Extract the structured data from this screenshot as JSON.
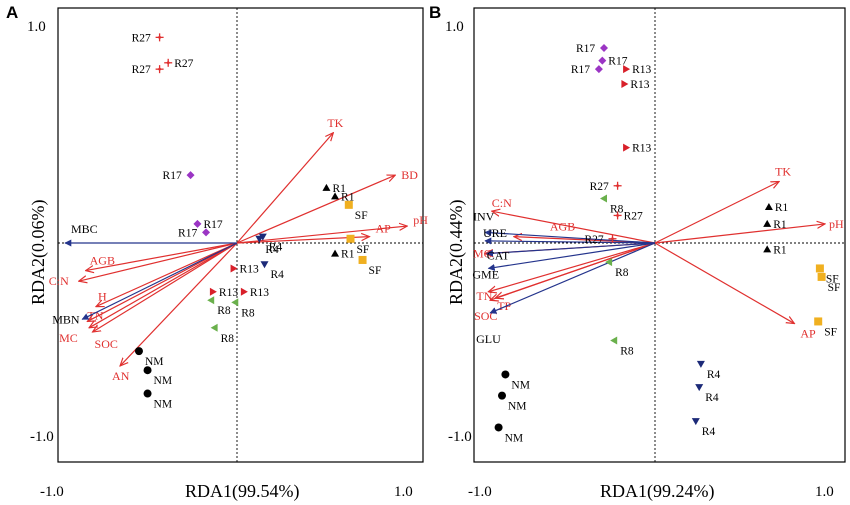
{
  "chart_data": [
    {
      "type": "scatter",
      "panel": "A",
      "xlabel": "RDA1(99.54%)",
      "ylabel": "RDA2(0.06%)",
      "xlim": [
        -1.05,
        1.0
      ],
      "ylim": [
        -1.1,
        1.05
      ],
      "x_ticks": [
        "-1.0",
        "1.0"
      ],
      "y_ticks": [
        "1.0",
        "-1.0"
      ],
      "env_vectors": [
        {
          "name": "TK",
          "x": 0.56,
          "y": 0.52,
          "color": "red"
        },
        {
          "name": "BD",
          "x": 0.92,
          "y": 0.32,
          "color": "red"
        },
        {
          "name": "pH",
          "x": 0.99,
          "y": 0.08,
          "color": "red"
        },
        {
          "name": "AP",
          "x": 0.77,
          "y": 0.03,
          "color": "red"
        },
        {
          "name": "AGB",
          "x": -0.88,
          "y": -0.13,
          "color": "red"
        },
        {
          "name": "C:N",
          "x": -0.92,
          "y": -0.18,
          "color": "red"
        },
        {
          "name": "H",
          "x": -0.82,
          "y": -0.3,
          "color": "red"
        },
        {
          "name": "TN",
          "x": -0.87,
          "y": -0.37,
          "color": "red"
        },
        {
          "name": "MC",
          "x": -0.86,
          "y": -0.4,
          "color": "red"
        },
        {
          "name": "SOC",
          "x": -0.84,
          "y": -0.42,
          "color": "red"
        },
        {
          "name": "AN",
          "x": -0.68,
          "y": -0.58,
          "color": "red"
        },
        {
          "name": "MBC",
          "x": -1.0,
          "y": 0.0,
          "color": "blue"
        },
        {
          "name": "MBN",
          "x": -0.9,
          "y": -0.36,
          "color": "blue"
        }
      ],
      "samples": [
        {
          "label": "R27",
          "group": "R27",
          "x": -0.45,
          "y": 0.97
        },
        {
          "label": "R27",
          "group": "R27",
          "x": -0.4,
          "y": 0.85
        },
        {
          "label": "R27",
          "group": "R27",
          "x": -0.45,
          "y": 0.82
        },
        {
          "label": "R17",
          "group": "R17",
          "x": -0.27,
          "y": 0.32
        },
        {
          "label": "R17",
          "group": "R17",
          "x": -0.23,
          "y": 0.09
        },
        {
          "label": "R17",
          "group": "R17",
          "x": -0.18,
          "y": 0.05
        },
        {
          "label": "R4",
          "group": "R4",
          "x": 0.15,
          "y": 0.03
        },
        {
          "label": "R4",
          "group": "R4",
          "x": 0.13,
          "y": 0.02
        },
        {
          "label": "R4",
          "group": "R4",
          "x": 0.16,
          "y": -0.1
        },
        {
          "label": "R1",
          "group": "R1",
          "x": 0.52,
          "y": 0.26
        },
        {
          "label": "R1",
          "group": "R1",
          "x": 0.57,
          "y": 0.22
        },
        {
          "label": "R1",
          "group": "R1",
          "x": 0.57,
          "y": -0.05
        },
        {
          "label": "SF",
          "group": "SF",
          "x": 0.65,
          "y": 0.18
        },
        {
          "label": "SF",
          "group": "SF",
          "x": 0.66,
          "y": 0.02
        },
        {
          "label": "SF",
          "group": "SF",
          "x": 0.73,
          "y": -0.08
        },
        {
          "label": "R13",
          "group": "R13",
          "x": -0.02,
          "y": -0.12
        },
        {
          "label": "R13",
          "group": "R13",
          "x": -0.14,
          "y": -0.23
        },
        {
          "label": "R13",
          "group": "R13",
          "x": 0.04,
          "y": -0.23
        },
        {
          "label": "R8",
          "group": "R8",
          "x": -0.15,
          "y": -0.27
        },
        {
          "label": "R8",
          "group": "R8",
          "x": -0.01,
          "y": -0.28
        },
        {
          "label": "R8",
          "group": "R8",
          "x": -0.13,
          "y": -0.4
        },
        {
          "label": "NM",
          "group": "NM",
          "x": -0.57,
          "y": -0.51
        },
        {
          "label": "NM",
          "group": "NM",
          "x": -0.52,
          "y": -0.6
        },
        {
          "label": "NM",
          "group": "NM",
          "x": -0.52,
          "y": -0.71
        }
      ]
    },
    {
      "type": "scatter",
      "panel": "B",
      "xlabel": "RDA1(99.24%)",
      "ylabel": "RDA2(0.44%)",
      "xlim": [
        -1.05,
        1.0
      ],
      "ylim": [
        -1.1,
        1.05
      ],
      "x_ticks": [
        "-1.0",
        "1.0"
      ],
      "y_ticks": [
        "1.0",
        "-1.0"
      ],
      "env_vectors": [
        {
          "name": "TK",
          "x": 0.73,
          "y": 0.29,
          "color": "red"
        },
        {
          "name": "pH",
          "x": 1.0,
          "y": 0.09,
          "color": "red"
        },
        {
          "name": "AP",
          "x": 0.82,
          "y": -0.38,
          "color": "red"
        },
        {
          "name": "C:N",
          "x": -0.96,
          "y": 0.15,
          "color": "red"
        },
        {
          "name": "AGB",
          "x": -0.83,
          "y": 0.03,
          "color": "red"
        },
        {
          "name": "MC",
          "x": -1.0,
          "y": -0.05,
          "color": "red"
        },
        {
          "name": "TN",
          "x": -0.98,
          "y": -0.23,
          "color": "red"
        },
        {
          "name": "SOC",
          "x": -0.97,
          "y": -0.27,
          "color": "red"
        },
        {
          "name": "TP",
          "x": -0.94,
          "y": -0.26,
          "color": "red"
        },
        {
          "name": "INV",
          "x": -1.0,
          "y": 0.05,
          "color": "blue"
        },
        {
          "name": "URE",
          "x": -1.0,
          "y": 0.01,
          "color": "blue"
        },
        {
          "name": "CAT",
          "x": -0.99,
          "y": -0.05,
          "color": "blue"
        },
        {
          "name": "GME",
          "x": -0.98,
          "y": -0.12,
          "color": "blue"
        },
        {
          "name": "GLU",
          "x": -0.97,
          "y": -0.33,
          "color": "blue"
        }
      ],
      "samples": [
        {
          "label": "R17",
          "group": "R17",
          "x": -0.3,
          "y": 0.92
        },
        {
          "label": "R17",
          "group": "R17",
          "x": -0.31,
          "y": 0.86
        },
        {
          "label": "R17",
          "group": "R17",
          "x": -0.33,
          "y": 0.82
        },
        {
          "label": "R13",
          "group": "R13",
          "x": -0.17,
          "y": 0.82
        },
        {
          "label": "R13",
          "group": "R13",
          "x": -0.18,
          "y": 0.75
        },
        {
          "label": "R13",
          "group": "R13",
          "x": -0.17,
          "y": 0.45
        },
        {
          "label": "R27",
          "group": "R27",
          "x": -0.22,
          "y": 0.27
        },
        {
          "label": "R27",
          "group": "R27",
          "x": -0.22,
          "y": 0.13
        },
        {
          "label": "R27",
          "group": "R27",
          "x": -0.25,
          "y": 0.02
        },
        {
          "label": "R8",
          "group": "R8",
          "x": -0.3,
          "y": 0.21
        },
        {
          "label": "R8",
          "group": "R8",
          "x": -0.27,
          "y": -0.09
        },
        {
          "label": "R8",
          "group": "R8",
          "x": -0.24,
          "y": -0.46
        },
        {
          "label": "R1",
          "group": "R1",
          "x": 0.67,
          "y": 0.17
        },
        {
          "label": "R1",
          "group": "R1",
          "x": 0.66,
          "y": 0.09
        },
        {
          "label": "R1",
          "group": "R1",
          "x": 0.66,
          "y": -0.03
        },
        {
          "label": "SF",
          "group": "SF",
          "x": 0.97,
          "y": -0.12
        },
        {
          "label": "SF",
          "group": "SF",
          "x": 0.98,
          "y": -0.16
        },
        {
          "label": "SF",
          "group": "SF",
          "x": 0.96,
          "y": -0.37
        },
        {
          "label": "R4",
          "group": "R4",
          "x": 0.27,
          "y": -0.57
        },
        {
          "label": "R4",
          "group": "R4",
          "x": 0.26,
          "y": -0.68
        },
        {
          "label": "R4",
          "group": "R4",
          "x": 0.24,
          "y": -0.84
        },
        {
          "label": "NM",
          "group": "NM",
          "x": -0.88,
          "y": -0.62
        },
        {
          "label": "NM",
          "group": "NM",
          "x": -0.9,
          "y": -0.72
        },
        {
          "label": "NM",
          "group": "NM",
          "x": -0.92,
          "y": -0.87
        }
      ]
    }
  ],
  "group_styles": {
    "R27": {
      "marker": "plus-diamond",
      "color": "#e03030"
    },
    "R17": {
      "marker": "diamond",
      "color": "#9b35c4"
    },
    "R13": {
      "marker": "triangle-right",
      "color": "#d8202a"
    },
    "R8": {
      "marker": "triangle-left",
      "color": "#6ab04c"
    },
    "R4": {
      "marker": "triangle-down",
      "color": "#1c2a78"
    },
    "R1": {
      "marker": "triangle-up",
      "color": "#000000"
    },
    "SF": {
      "marker": "square",
      "color": "#f0b020"
    },
    "NM": {
      "marker": "circle",
      "color": "#000000"
    }
  },
  "colors": {
    "red_vector": "#e0302f",
    "blue_vector": "#24348c"
  }
}
